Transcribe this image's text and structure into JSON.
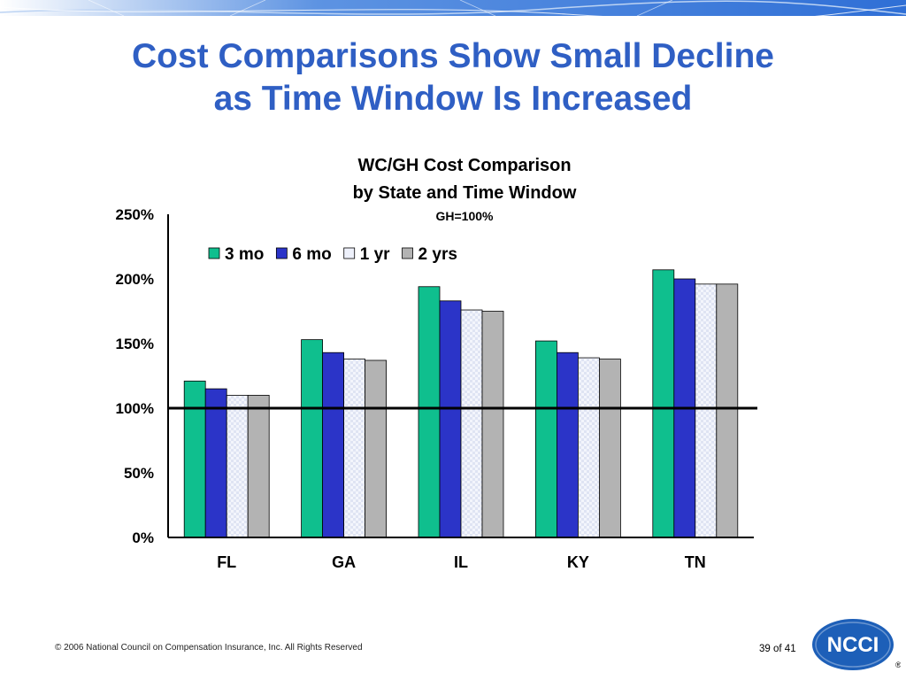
{
  "slide": {
    "title_line1": "Cost Comparisons Show Small Decline",
    "title_line2": "as Time Window Is Increased",
    "copyright": "© 2006 National Council on Compensation Insurance, Inc. All Rights Reserved",
    "page_current": "39",
    "page_sep": "of",
    "page_total": "41",
    "logo_text": "NCCI",
    "registered_mark": "®"
  },
  "colors": {
    "title": "#2f5fc4",
    "banner": "#2f6fd6",
    "logo": "#1d5fb8",
    "series": [
      "#0fbf8e",
      "#2b34c8",
      "#eef1fb",
      "#b3b3b3"
    ]
  },
  "chart_data": {
    "type": "bar",
    "title": "WC/GH Cost Comparison",
    "title_line2": "by State and Time Window",
    "subtitle": "GH=100%",
    "categories": [
      "FL",
      "GA",
      "IL",
      "KY",
      "TN"
    ],
    "series": [
      {
        "name": "3 mo",
        "values": [
          121,
          153,
          194,
          152,
          207
        ]
      },
      {
        "name": "6 mo",
        "values": [
          115,
          143,
          183,
          143,
          200
        ]
      },
      {
        "name": "1 yr",
        "values": [
          110,
          138,
          176,
          139,
          196
        ]
      },
      {
        "name": "2 yrs",
        "values": [
          110,
          137,
          175,
          138,
          196
        ]
      }
    ],
    "ylim": [
      0,
      250
    ],
    "yticks": [
      0,
      50,
      100,
      150,
      200,
      250
    ],
    "ytick_labels": [
      "0%",
      "50%",
      "100%",
      "150%",
      "200%",
      "250%"
    ],
    "reference_line": 100,
    "xlabel": "",
    "ylabel": "",
    "grid": false,
    "legend_position": "top-inside"
  }
}
